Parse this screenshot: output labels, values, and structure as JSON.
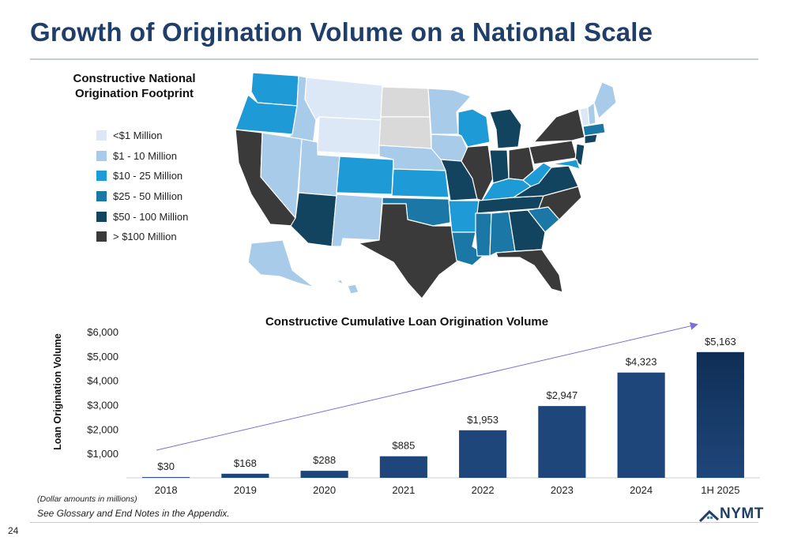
{
  "header": {
    "title": "Growth of Origination Volume on a National Scale"
  },
  "map": {
    "title_line1": "Constructive National",
    "title_line2": "Origination Footprint",
    "legend": [
      {
        "label": "<$1 Million",
        "color": "#dde8f6"
      },
      {
        "label": "$1 - 10 Million",
        "color": "#a9cbea"
      },
      {
        "label": "$10 - 25 Million",
        "color": "#1e9ad6"
      },
      {
        "label": "$25 - 50 Million",
        "color": "#1a77a6"
      },
      {
        "label": "$50 - 100 Million",
        "color": "#12435f"
      },
      {
        "label": "> $100 Million",
        "color": "#3a3a3a"
      }
    ]
  },
  "chart_data": {
    "type": "bar",
    "title": "Constructive Cumulative Loan Origination Volume",
    "ylabel": "Loan Origination Volume",
    "xlabel": "",
    "categories": [
      "2018",
      "2019",
      "2020",
      "2021",
      "2022",
      "2023",
      "2024",
      "1H 2025"
    ],
    "values": [
      30,
      168,
      288,
      885,
      1953,
      2947,
      4323,
      5163
    ],
    "data_labels": [
      "$30",
      "$168",
      "$288",
      "$885",
      "$1,953",
      "$2,947",
      "$4,323",
      "$5,163"
    ],
    "yticks": [
      "$1,000",
      "$2,000",
      "$3,000",
      "$4,000",
      "$5,000",
      "$6,000"
    ],
    "ylim": [
      0,
      6000
    ],
    "grid": false,
    "bar_color": "#1f467a",
    "last_bar_color": "#0f2e55",
    "trend_arrow_color": "#7b6fd8"
  },
  "footer": {
    "units_note": "(Dollar amounts in millions)",
    "appendix_note": "See Glossary and End Notes in the Appendix.",
    "page_number": "24",
    "logo_text": "NYMT"
  }
}
